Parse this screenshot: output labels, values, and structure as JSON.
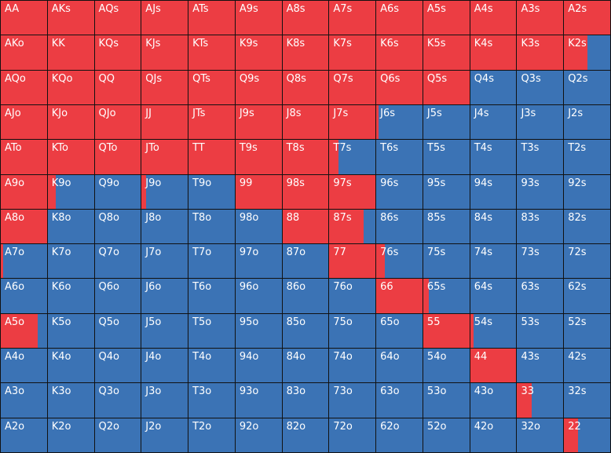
{
  "colors": {
    "raise": "#ec3d43",
    "fold": "#3b73b5",
    "border": "#111111",
    "text": "#ffffff"
  },
  "grid": {
    "hands": [
      [
        "AA",
        "AKs",
        "AQs",
        "AJs",
        "ATs",
        "A9s",
        "A8s",
        "A7s",
        "A6s",
        "A5s",
        "A4s",
        "A3s",
        "A2s"
      ],
      [
        "AKo",
        "KK",
        "KQs",
        "KJs",
        "KTs",
        "K9s",
        "K8s",
        "K7s",
        "K6s",
        "K5s",
        "K4s",
        "K3s",
        "K2s"
      ],
      [
        "AQo",
        "KQo",
        "QQ",
        "QJs",
        "QTs",
        "Q9s",
        "Q8s",
        "Q7s",
        "Q6s",
        "Q5s",
        "Q4s",
        "Q3s",
        "Q2s"
      ],
      [
        "AJo",
        "KJo",
        "QJo",
        "JJ",
        "JTs",
        "J9s",
        "J8s",
        "J7s",
        "J6s",
        "J5s",
        "J4s",
        "J3s",
        "J2s"
      ],
      [
        "ATo",
        "KTo",
        "QTo",
        "JTo",
        "TT",
        "T9s",
        "T8s",
        "T7s",
        "T6s",
        "T5s",
        "T4s",
        "T3s",
        "T2s"
      ],
      [
        "A9o",
        "K9o",
        "Q9o",
        "J9o",
        "T9o",
        "99",
        "98s",
        "97s",
        "96s",
        "95s",
        "94s",
        "93s",
        "92s"
      ],
      [
        "A8o",
        "K8o",
        "Q8o",
        "J8o",
        "T8o",
        "98o",
        "88",
        "87s",
        "86s",
        "85s",
        "84s",
        "83s",
        "82s"
      ],
      [
        "A7o",
        "K7o",
        "Q7o",
        "J7o",
        "T7o",
        "97o",
        "87o",
        "77",
        "76s",
        "75s",
        "74s",
        "73s",
        "72s"
      ],
      [
        "A6o",
        "K6o",
        "Q6o",
        "J6o",
        "T6o",
        "96o",
        "86o",
        "76o",
        "66",
        "65s",
        "64s",
        "63s",
        "62s"
      ],
      [
        "A5o",
        "K5o",
        "Q5o",
        "J5o",
        "T5o",
        "95o",
        "85o",
        "75o",
        "65o",
        "55",
        "54s",
        "53s",
        "52s"
      ],
      [
        "A4o",
        "K4o",
        "Q4o",
        "J4o",
        "T4o",
        "94o",
        "84o",
        "74o",
        "64o",
        "54o",
        "44",
        "43s",
        "42s"
      ],
      [
        "A3o",
        "K3o",
        "Q3o",
        "J3o",
        "T3o",
        "93o",
        "83o",
        "73o",
        "63o",
        "53o",
        "43o",
        "33",
        "32s"
      ],
      [
        "A2o",
        "K2o",
        "Q2o",
        "J2o",
        "T2o",
        "92o",
        "82o",
        "72o",
        "62o",
        "52o",
        "42o",
        "32o",
        "22"
      ]
    ],
    "raise_frequency": [
      [
        1,
        1,
        1,
        1,
        1,
        1,
        1,
        1,
        1,
        1,
        1,
        1,
        1
      ],
      [
        1,
        1,
        1,
        1,
        1,
        1,
        1,
        1,
        1,
        1,
        1,
        1,
        0.5
      ],
      [
        1,
        1,
        1,
        1,
        1,
        1,
        1,
        1,
        1,
        1,
        0,
        0,
        0
      ],
      [
        1,
        1,
        1,
        1,
        1,
        1,
        1,
        1,
        0.05,
        0,
        0,
        0,
        0
      ],
      [
        1,
        1,
        1,
        1,
        1,
        1,
        1,
        0.2,
        0,
        0,
        0,
        0,
        0
      ],
      [
        1,
        0.18,
        0,
        0.1,
        0,
        1,
        1,
        1,
        0,
        0,
        0,
        0,
        0
      ],
      [
        1,
        0,
        0,
        0,
        0,
        0,
        1,
        0.75,
        0,
        0,
        0,
        0,
        0
      ],
      [
        0.05,
        0,
        0,
        0,
        0,
        0,
        0,
        1,
        0.18,
        0,
        0,
        0,
        0
      ],
      [
        0,
        0,
        0,
        0,
        0,
        0,
        0,
        0,
        1,
        0.12,
        0,
        0,
        0
      ],
      [
        0.8,
        0,
        0,
        0,
        0,
        0,
        0,
        0,
        0,
        1,
        0.08,
        0,
        0
      ],
      [
        0,
        0,
        0,
        0,
        0,
        0,
        0,
        0,
        0,
        0,
        1,
        0,
        0
      ],
      [
        0,
        0,
        0,
        0,
        0,
        0,
        0,
        0,
        0,
        0,
        0,
        0.32,
        0
      ],
      [
        0,
        0,
        0,
        0,
        0,
        0,
        0,
        0,
        0,
        0,
        0,
        0,
        0.3
      ]
    ]
  }
}
